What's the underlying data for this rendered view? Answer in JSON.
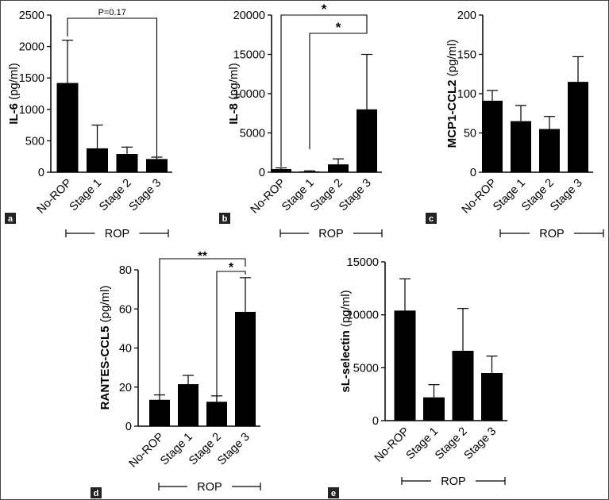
{
  "colors": {
    "bar": "#000000",
    "axis": "#000000",
    "label_bg": "#222222",
    "label_fg": "#ffffff"
  },
  "chart_data": [
    {
      "type": "bar",
      "panel_label": "a",
      "categories": [
        "No-ROP",
        "Stage 1",
        "Stage 2",
        "Stage 3"
      ],
      "values": [
        1420,
        380,
        290,
        210
      ],
      "errors": [
        680,
        370,
        110,
        30
      ],
      "ylabel_bold": "IL-6",
      "ylabel_rest": " (pg/ml)",
      "ylim": [
        0,
        2500
      ],
      "yticks": [
        0,
        500,
        1000,
        1500,
        2000,
        2500
      ],
      "group_label": "ROP",
      "annotations": [
        {
          "from": 0,
          "to": 3,
          "label": "P=0.17"
        }
      ]
    },
    {
      "type": "bar",
      "panel_label": "b",
      "categories": [
        "No-ROP",
        "Stage 1",
        "Stage 2",
        "Stage 3"
      ],
      "values": [
        400,
        100,
        1000,
        8000
      ],
      "errors": [
        150,
        80,
        700,
        7000
      ],
      "ylabel_bold": "IL-8",
      "ylabel_rest": " (pg/ml)",
      "ylim": [
        0,
        20000
      ],
      "yticks": [
        0,
        5000,
        10000,
        15000,
        20000
      ],
      "group_label": "ROP",
      "annotations": [
        {
          "from": 0,
          "to": 3,
          "label": "*"
        },
        {
          "from": 1,
          "to": 3,
          "label": "*"
        }
      ]
    },
    {
      "type": "bar",
      "panel_label": "c",
      "categories": [
        "No-ROP",
        "Stage 1",
        "Stage 2",
        "Stage 3"
      ],
      "values": [
        91,
        65,
        55,
        115
      ],
      "errors": [
        13,
        20,
        16,
        32
      ],
      "ylabel_bold": "MCP1-CCL2",
      "ylabel_rest": " (pg/ml)",
      "ylim": [
        0,
        200
      ],
      "yticks": [
        0,
        50,
        100,
        150,
        200
      ],
      "group_label": "ROP",
      "annotations": []
    },
    {
      "type": "bar",
      "panel_label": "d",
      "categories": [
        "No-ROP",
        "Stage 1",
        "Stage 2",
        "Stage 3"
      ],
      "values": [
        13.5,
        21.5,
        12.5,
        58.5
      ],
      "errors": [
        2.5,
        4.5,
        3,
        17.5
      ],
      "ylabel_bold": "RANTES-CCL5",
      "ylabel_rest": " (pg/ml)",
      "ylim": [
        0,
        80
      ],
      "yticks": [
        0,
        20,
        40,
        60,
        80
      ],
      "group_label": "ROP",
      "annotations": [
        {
          "from": 0,
          "to": 3,
          "label": "**"
        },
        {
          "from": 2,
          "to": 3,
          "label": "*"
        }
      ]
    },
    {
      "type": "bar",
      "panel_label": "e",
      "categories": [
        "No-ROP",
        "Stage 1",
        "Stage 2",
        "Stage 3"
      ],
      "values": [
        10400,
        2200,
        6600,
        4500
      ],
      "errors": [
        3000,
        1200,
        4000,
        1600
      ],
      "ylabel_bold": "sL-selectin",
      "ylabel_rest": " (pg/ml)",
      "ylim": [
        0,
        15000
      ],
      "yticks": [
        0,
        5000,
        10000,
        15000
      ],
      "group_label": "ROP",
      "annotations": []
    }
  ]
}
